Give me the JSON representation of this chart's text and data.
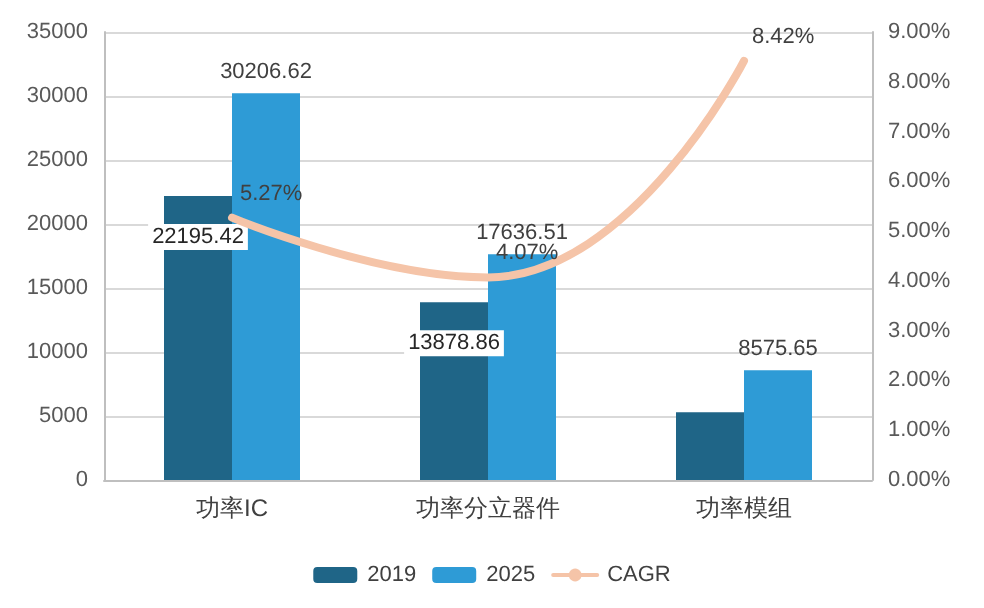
{
  "chart_data": {
    "type": "bar",
    "categories": [
      "功率IC",
      "功率分立器件",
      "功率模组"
    ],
    "series": [
      {
        "name": "2019",
        "color": "#1f6587",
        "values": [
          22195.42,
          13878.86,
          5300
        ],
        "value_labels": [
          "22195.42",
          "13878.86",
          null
        ]
      },
      {
        "name": "2025",
        "color": "#2e9bd6",
        "values": [
          30206.62,
          17636.51,
          8575.65
        ],
        "value_labels": [
          "30206.62",
          "17636.51",
          "8575.65"
        ]
      },
      {
        "name": "CAGR",
        "type": "line",
        "axis": "y2",
        "color": "#f5c4a8",
        "values": [
          5.27,
          4.07,
          8.42
        ],
        "value_labels": [
          "5.27%",
          "4.07%",
          "8.42%"
        ]
      }
    ],
    "ylim": [
      0,
      35000
    ],
    "yticks": [
      0,
      5000,
      10000,
      15000,
      20000,
      25000,
      30000,
      35000
    ],
    "y2lim": [
      0,
      9
    ],
    "y2ticks": [
      {
        "value": 0,
        "label": "0.00%"
      },
      {
        "value": 1,
        "label": "1.00%"
      },
      {
        "value": 2,
        "label": "2.00%"
      },
      {
        "value": 3,
        "label": "3.00%"
      },
      {
        "value": 4,
        "label": "4.00%"
      },
      {
        "value": 5,
        "label": "5.00%"
      },
      {
        "value": 6,
        "label": "6.00%"
      },
      {
        "value": 7,
        "label": "7.00%"
      },
      {
        "value": 8,
        "label": "8.00%"
      },
      {
        "value": 9,
        "label": "9.00%"
      }
    ],
    "grid": "y",
    "legend": "bottom",
    "marker": "none"
  }
}
